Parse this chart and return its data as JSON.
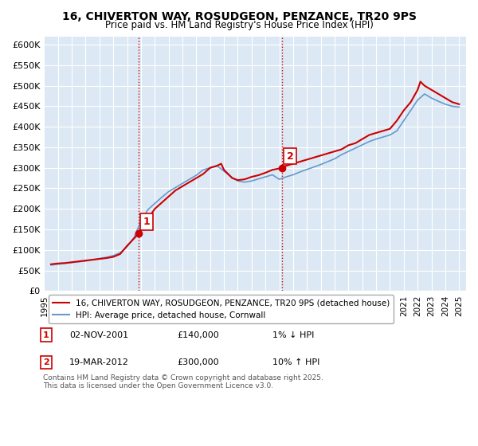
{
  "title": "16, CHIVERTON WAY, ROSUDGEON, PENZANCE, TR20 9PS",
  "subtitle": "Price paid vs. HM Land Registry's House Price Index (HPI)",
  "ylabel_ticks": [
    "£0",
    "£50K",
    "£100K",
    "£150K",
    "£200K",
    "£250K",
    "£300K",
    "£350K",
    "£400K",
    "£450K",
    "£500K",
    "£550K",
    "£600K"
  ],
  "ytick_values": [
    0,
    50000,
    100000,
    150000,
    200000,
    250000,
    300000,
    350000,
    400000,
    450000,
    500000,
    550000,
    600000
  ],
  "ylim": [
    0,
    620000
  ],
  "xlim_start": 1995.0,
  "xlim_end": 2025.5,
  "background_color": "#dce9f5",
  "plot_bg_color": "#dce9f5",
  "grid_color": "#ffffff",
  "line_color_property": "#cc0000",
  "line_color_hpi": "#6699cc",
  "vline_color": "#cc0000",
  "vline_style": ":",
  "marker1_date": 2001.84,
  "marker1_value": 140000,
  "marker1_label": "1",
  "marker2_date": 2012.22,
  "marker2_value": 300000,
  "marker2_label": "2",
  "legend_line1": "16, CHIVERTON WAY, ROSUDGEON, PENZANCE, TR20 9PS (detached house)",
  "legend_line2": "HPI: Average price, detached house, Cornwall",
  "annotation1": "1    02-NOV-2001         £140,000         1% ↓ HPI",
  "annotation2": "2    19-MAR-2012         £300,000         10% ↑ HPI",
  "footer": "Contains HM Land Registry data © Crown copyright and database right 2025.\nThis data is licensed under the Open Government Licence v3.0.",
  "xtick_years": [
    1995,
    1996,
    1997,
    1998,
    1999,
    2000,
    2001,
    2002,
    2003,
    2004,
    2005,
    2006,
    2007,
    2008,
    2009,
    2010,
    2011,
    2012,
    2013,
    2014,
    2015,
    2016,
    2017,
    2018,
    2019,
    2020,
    2021,
    2022,
    2023,
    2024,
    2025
  ],
  "property_x": [
    1995.5,
    1996.0,
    1996.5,
    1997.0,
    1997.5,
    1998.0,
    1998.5,
    1999.0,
    1999.5,
    2000.0,
    2000.5,
    2001.0,
    2001.84,
    2002.5,
    2003.0,
    2003.5,
    2004.0,
    2004.5,
    2005.0,
    2005.5,
    2006.0,
    2006.5,
    2007.0,
    2007.5,
    2007.8,
    2008.0,
    2008.3,
    2008.6,
    2009.0,
    2009.5,
    2010.0,
    2010.5,
    2011.0,
    2011.5,
    2012.22,
    2012.5,
    2013.0,
    2013.5,
    2014.0,
    2014.5,
    2015.0,
    2015.5,
    2016.0,
    2016.5,
    2017.0,
    2017.5,
    2018.0,
    2018.5,
    2019.0,
    2019.5,
    2020.0,
    2020.5,
    2021.0,
    2021.5,
    2022.0,
    2022.2,
    2022.5,
    2023.0,
    2023.5,
    2024.0,
    2024.5,
    2025.0
  ],
  "property_y": [
    65000,
    67000,
    68000,
    70000,
    72000,
    74000,
    76000,
    78000,
    80000,
    83000,
    90000,
    110000,
    140000,
    175000,
    200000,
    215000,
    230000,
    245000,
    255000,
    265000,
    275000,
    285000,
    300000,
    305000,
    310000,
    295000,
    285000,
    275000,
    270000,
    272000,
    278000,
    282000,
    288000,
    295000,
    300000,
    305000,
    310000,
    315000,
    320000,
    325000,
    330000,
    335000,
    340000,
    345000,
    355000,
    360000,
    370000,
    380000,
    385000,
    390000,
    395000,
    415000,
    440000,
    460000,
    490000,
    510000,
    500000,
    490000,
    480000,
    470000,
    460000,
    455000
  ],
  "hpi_x": [
    1995.5,
    1996.0,
    1996.5,
    1997.0,
    1997.5,
    1998.0,
    1998.5,
    1999.0,
    1999.5,
    2000.0,
    2000.5,
    2001.0,
    2001.5,
    2002.0,
    2002.5,
    2003.0,
    2003.5,
    2004.0,
    2004.5,
    2005.0,
    2005.5,
    2006.0,
    2006.5,
    2007.0,
    2007.5,
    2008.0,
    2008.5,
    2009.0,
    2009.5,
    2010.0,
    2010.5,
    2011.0,
    2011.5,
    2012.0,
    2012.5,
    2013.0,
    2013.5,
    2014.0,
    2014.5,
    2015.0,
    2015.5,
    2016.0,
    2016.5,
    2017.0,
    2017.5,
    2018.0,
    2018.5,
    2019.0,
    2019.5,
    2020.0,
    2020.5,
    2021.0,
    2021.5,
    2022.0,
    2022.5,
    2023.0,
    2023.5,
    2024.0,
    2024.5,
    2025.0
  ],
  "hpi_y": [
    63000,
    65000,
    67000,
    69000,
    71000,
    73000,
    76000,
    79000,
    82000,
    86000,
    93000,
    108000,
    130000,
    170000,
    198000,
    213000,
    228000,
    242000,
    252000,
    262000,
    272000,
    282000,
    295000,
    300000,
    305000,
    292000,
    278000,
    268000,
    265000,
    268000,
    273000,
    278000,
    283000,
    272000,
    278000,
    283000,
    290000,
    296000,
    302000,
    308000,
    315000,
    322000,
    332000,
    340000,
    348000,
    356000,
    364000,
    370000,
    375000,
    380000,
    390000,
    415000,
    440000,
    465000,
    480000,
    470000,
    462000,
    455000,
    450000,
    448000
  ]
}
